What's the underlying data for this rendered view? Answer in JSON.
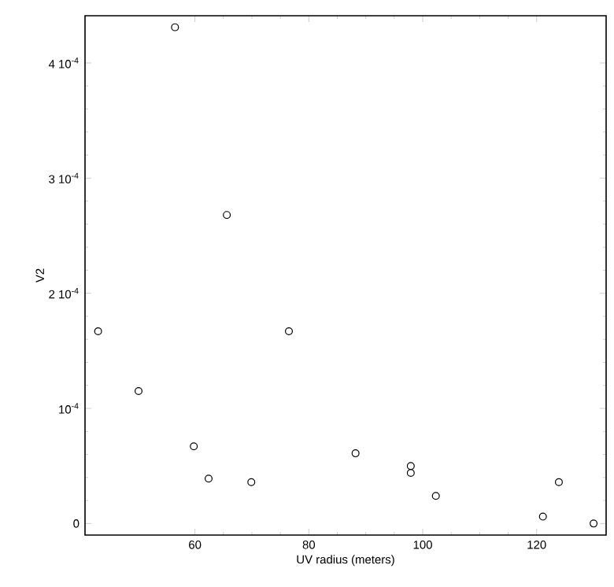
{
  "chart_data": {
    "type": "scatter",
    "xlabel": "UV radius (meters)",
    "ylabel": "V2",
    "x": [
      43.0,
      50.1,
      56.5,
      59.8,
      62.4,
      65.6,
      69.9,
      76.5,
      88.2,
      97.9,
      97.9,
      102.3,
      121.1,
      123.9,
      130.0
    ],
    "values": [
      0.000167,
      0.000115,
      0.000431,
      6.7e-05,
      3.9e-05,
      0.000268,
      3.6e-05,
      0.000167,
      6.1e-05,
      5e-05,
      4.4e-05,
      2.4e-05,
      6e-06,
      3.6e-05,
      0.0
    ],
    "color": "#000000",
    "marker": "circle",
    "grid": false,
    "xlim": [
      40.7,
      132.2
    ],
    "ylim": [
      -1e-05,
      0.000441
    ],
    "xticks": [
      60,
      80,
      100,
      120
    ],
    "yticks": [
      {
        "value": 0,
        "label": "0"
      },
      {
        "value": 0.0001,
        "label": "10$^{-4}$"
      },
      {
        "value": 0.0002,
        "label": "2 10$^{-4}$"
      },
      {
        "value": 0.0003,
        "label": "3 10$^{-4}$"
      },
      {
        "value": 0.0004,
        "label": "4 10$^{-4}$"
      }
    ]
  }
}
